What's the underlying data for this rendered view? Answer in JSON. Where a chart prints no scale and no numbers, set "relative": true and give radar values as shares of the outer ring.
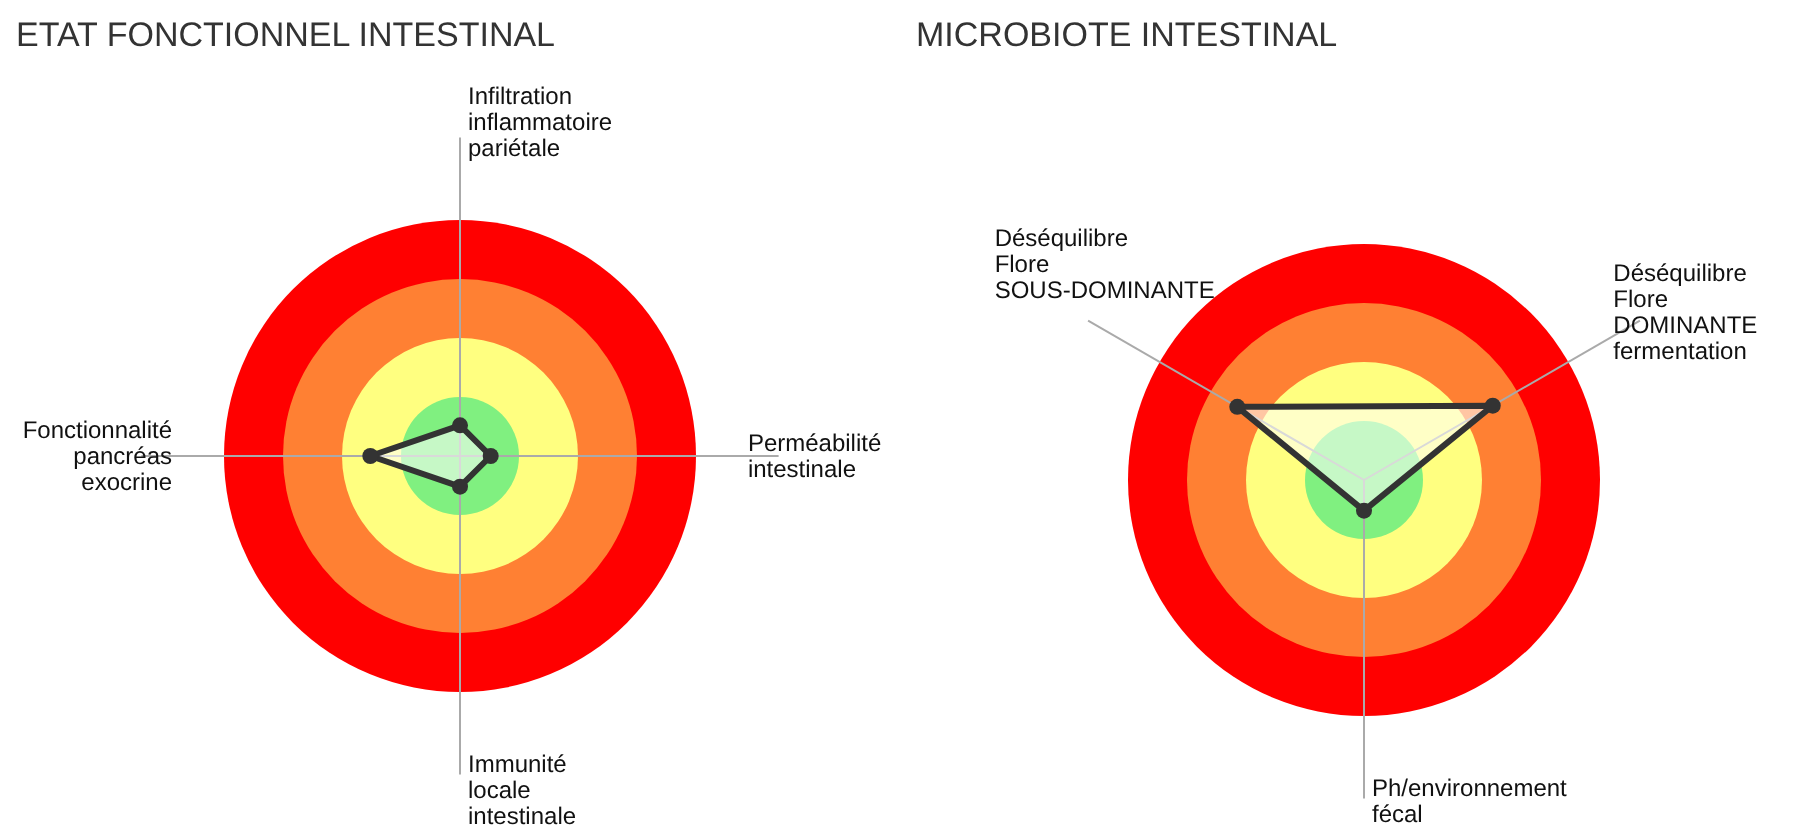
{
  "chart_data": [
    {
      "type": "radar",
      "title": "ETAT FONCTIONNEL INTESTINAL",
      "categories": [
        "Infiltration inflammatoire pariétale",
        "Perméabilité intestinale",
        "Immunité locale intestinale",
        "Fonctionnalité pancréas exocrine"
      ],
      "relative": true,
      "grid": true,
      "marker": "circle",
      "series": [
        {
          "color": "#333333",
          "values": [
            0.13,
            0.13,
            0.13,
            0.38
          ]
        }
      ]
    },
    {
      "type": "radar",
      "title": "MICROBIOTE INTESTINAL",
      "categories": [
        "Déséquilibre Flore DOMINANTE fermentation",
        "Ph/environnement fécal",
        "Déséquilibre Flore SOUS-DOMINANTE"
      ],
      "relative": true,
      "grid": true,
      "marker": "circle",
      "series": [
        {
          "color": "#333333",
          "values": [
            0.63,
            0.13,
            0.62
          ]
        }
      ]
    }
  ]
}
